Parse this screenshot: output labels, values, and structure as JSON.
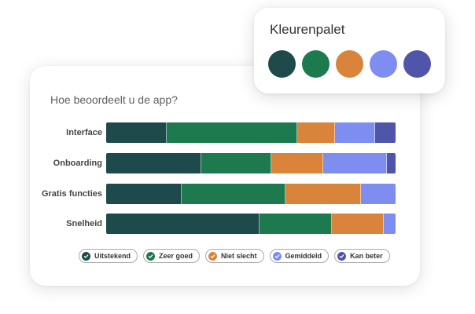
{
  "palette": {
    "title": "Kleurenpalet",
    "colors": [
      "#1f4a4c",
      "#1d7a4f",
      "#d9843a",
      "#7d8df0",
      "#4f55a8"
    ]
  },
  "chart_data": {
    "type": "bar",
    "stacked": true,
    "orientation": "horizontal",
    "title": "Hoe beoordeelt u de app?",
    "categories": [
      "Interface",
      "Onboarding",
      "Gratis functies",
      "Snelheid"
    ],
    "series": [
      {
        "name": "Uitstekend",
        "color": "#1f4a4c",
        "values": [
          21,
          33,
          26,
          53
        ]
      },
      {
        "name": "Zeer goed",
        "color": "#1d7a4f",
        "values": [
          45,
          24,
          36,
          25
        ]
      },
      {
        "name": "Niet slecht",
        "color": "#d9843a",
        "values": [
          13,
          18,
          26,
          18
        ]
      },
      {
        "name": "Gemiddeld",
        "color": "#7d8df0",
        "values": [
          14,
          22,
          12,
          4
        ]
      },
      {
        "name": "Kan beter",
        "color": "#4f55a8",
        "values": [
          7,
          3,
          0,
          0
        ]
      }
    ],
    "legend_position": "bottom",
    "grid": false
  }
}
